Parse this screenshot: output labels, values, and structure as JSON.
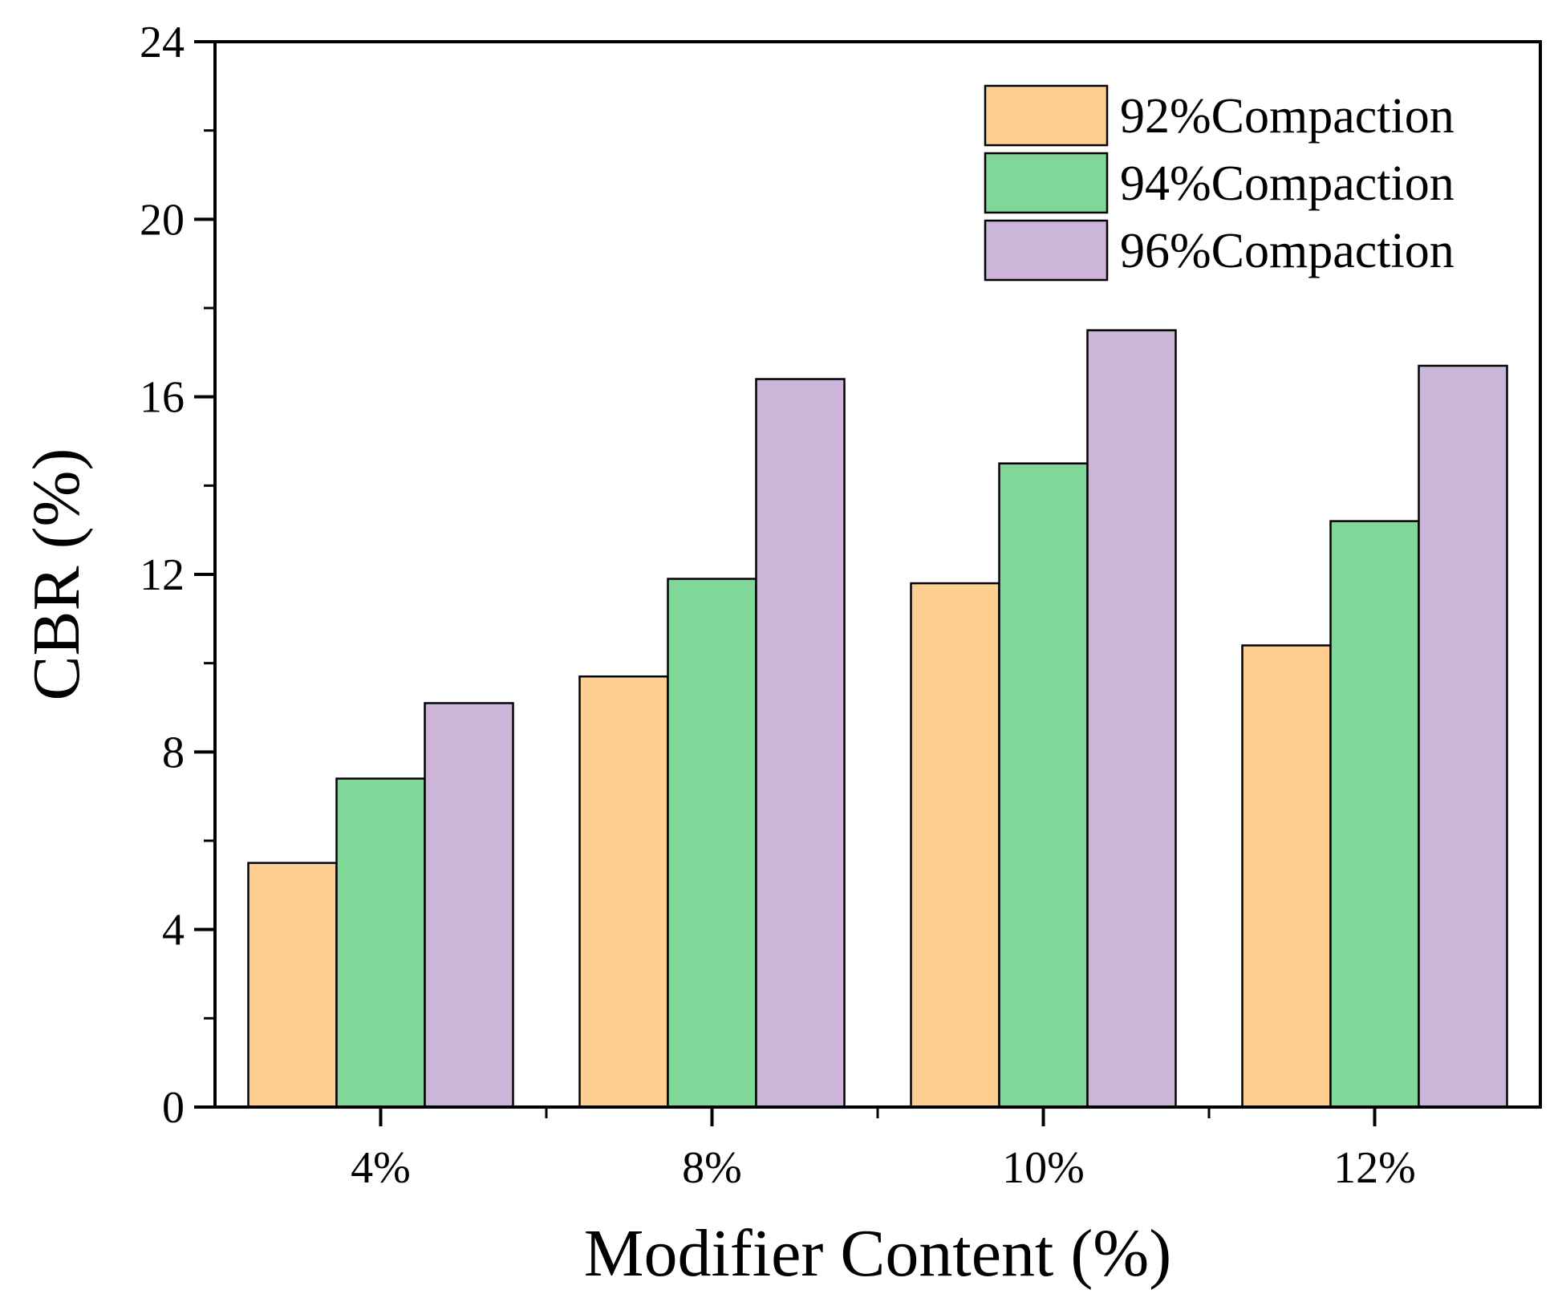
{
  "chart_data": {
    "type": "bar",
    "title": "",
    "xlabel": "Modifier Content (%)",
    "ylabel": "CBR (%)",
    "categories": [
      "4%",
      "8%",
      "10%",
      "12%"
    ],
    "ylim": [
      0,
      24
    ],
    "yticks": [
      0,
      4,
      8,
      12,
      16,
      20,
      24
    ],
    "ytick_labels": [
      "0",
      "4",
      "8",
      "12",
      "16",
      "20",
      "24"
    ],
    "grid": false,
    "legend_position": "top-right",
    "series": [
      {
        "name": "92%Compaction",
        "color": "#FECF91",
        "values": [
          5.5,
          9.7,
          11.8,
          10.4
        ]
      },
      {
        "name": "94%Compaction",
        "color": "#7FD898",
        "values": [
          7.4,
          11.9,
          14.5,
          13.2
        ]
      },
      {
        "name": "96%Compaction",
        "color": "#CDB4D9",
        "values": [
          9.1,
          16.4,
          17.5,
          16.7
        ]
      }
    ]
  }
}
